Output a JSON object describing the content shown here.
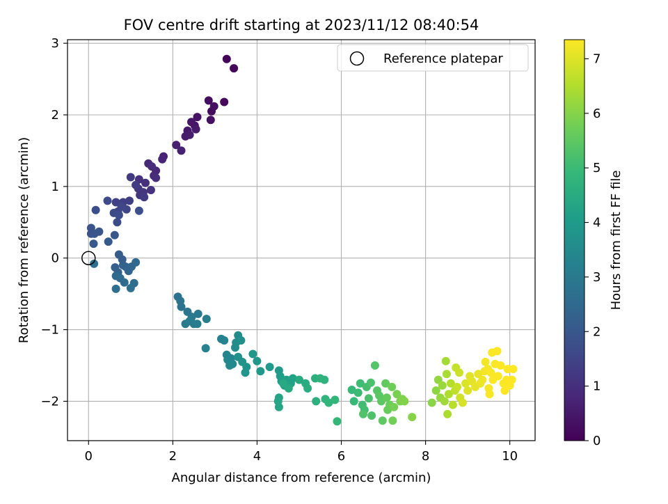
{
  "chart_data": {
    "type": "scatter",
    "title": "FOV centre drift starting at 2023/11/12 08:40:54",
    "xlabel": "Angular distance from reference (arcmin)",
    "ylabel": "Rotation from reference (arcmin)",
    "xlim": [
      -0.5,
      10.6
    ],
    "ylim": [
      -2.55,
      3.05
    ],
    "xticks": [
      "0",
      "2",
      "4",
      "6",
      "8",
      "10"
    ],
    "yticks": [
      "−2",
      "−1",
      "0",
      "1",
      "2",
      "3"
    ],
    "grid": true,
    "legend": {
      "placement": "top-right",
      "entries": [
        {
          "label": "Reference platepar",
          "marker": "open-circle"
        }
      ]
    },
    "reference_point": {
      "x": 0,
      "y": 0
    },
    "colorbar": {
      "label": "Hours from first FF file",
      "range": [
        0,
        7.35
      ],
      "ticks": [
        "0",
        "1",
        "2",
        "3",
        "4",
        "5",
        "6",
        "7"
      ],
      "colormap": "viridis"
    },
    "points": [
      [
        3.28,
        2.78,
        0.05
      ],
      [
        3.45,
        2.65,
        0.1
      ],
      [
        3.22,
        2.18,
        0.15
      ],
      [
        2.92,
        2.05,
        0.2
      ],
      [
        2.85,
        2.2,
        0.25
      ],
      [
        2.98,
        2.12,
        0.28
      ],
      [
        2.9,
        1.93,
        0.32
      ],
      [
        2.58,
        1.97,
        0.36
      ],
      [
        2.52,
        1.85,
        0.4
      ],
      [
        2.44,
        1.9,
        0.44
      ],
      [
        2.35,
        1.78,
        0.48
      ],
      [
        2.55,
        1.8,
        0.52
      ],
      [
        2.3,
        1.7,
        0.56
      ],
      [
        2.4,
        1.72,
        0.6
      ],
      [
        2.08,
        1.58,
        0.64
      ],
      [
        2.2,
        1.5,
        0.68
      ],
      [
        1.78,
        1.42,
        0.72
      ],
      [
        1.75,
        1.38,
        0.76
      ],
      [
        1.6,
        1.22,
        0.8
      ],
      [
        1.42,
        1.32,
        0.84
      ],
      [
        1.55,
        1.15,
        0.88
      ],
      [
        1.5,
        1.28,
        0.92
      ],
      [
        1.6,
        1.12,
        0.96
      ],
      [
        1.35,
        1.05,
        1.0
      ],
      [
        1.2,
        1.1,
        1.04
      ],
      [
        1.48,
        0.95,
        1.08
      ],
      [
        1.3,
        0.92,
        1.12
      ],
      [
        1.22,
        0.88,
        1.16
      ],
      [
        1.18,
        0.97,
        1.2
      ],
      [
        1.32,
        0.85,
        1.24
      ],
      [
        1.0,
        1.13,
        1.28
      ],
      [
        1.12,
        1.02,
        1.32
      ],
      [
        0.97,
        0.8,
        1.36
      ],
      [
        0.82,
        0.78,
        1.4
      ],
      [
        0.65,
        0.78,
        1.44
      ],
      [
        0.7,
        0.65,
        1.48
      ],
      [
        0.9,
        0.68,
        1.52
      ],
      [
        0.78,
        0.72,
        1.56
      ],
      [
        0.6,
        0.63,
        1.6
      ],
      [
        0.45,
        0.8,
        1.64
      ],
      [
        0.68,
        0.5,
        1.68
      ],
      [
        0.72,
        0.6,
        1.72
      ],
      [
        1.2,
        0.66,
        1.76
      ],
      [
        0.17,
        0.67,
        1.8
      ],
      [
        0.06,
        0.42,
        1.84
      ],
      [
        0.06,
        0.34,
        1.88
      ],
      [
        0.14,
        0.34,
        1.92
      ],
      [
        0.25,
        0.37,
        1.96
      ],
      [
        0.62,
        0.32,
        2.0
      ],
      [
        0.12,
        0.2,
        2.04
      ],
      [
        0.47,
        0.23,
        2.08
      ],
      [
        0.72,
        0.05,
        2.12
      ],
      [
        0.8,
        -0.02,
        2.16
      ],
      [
        0.82,
        -0.1,
        2.2
      ],
      [
        0.63,
        -0.13,
        2.24
      ],
      [
        0.7,
        -0.2,
        2.28
      ],
      [
        0.88,
        -0.12,
        2.32
      ],
      [
        0.95,
        -0.18,
        2.36
      ],
      [
        1.02,
        -0.12,
        2.4
      ],
      [
        1.12,
        -0.06,
        2.44
      ],
      [
        0.65,
        -0.25,
        2.48
      ],
      [
        0.75,
        -0.28,
        2.52
      ],
      [
        0.85,
        -0.34,
        2.56
      ],
      [
        1.08,
        -0.35,
        2.6
      ],
      [
        1.0,
        -0.42,
        2.64
      ],
      [
        0.65,
        -0.43,
        2.68
      ],
      [
        0.13,
        -0.08,
        2.72
      ],
      [
        2.12,
        -0.54,
        2.76
      ],
      [
        2.18,
        -0.6,
        2.8
      ],
      [
        2.2,
        -0.68,
        2.84
      ],
      [
        2.35,
        -0.75,
        2.88
      ],
      [
        2.45,
        -0.82,
        2.92
      ],
      [
        2.6,
        -0.78,
        2.96
      ],
      [
        2.3,
        -0.92,
        3.0
      ],
      [
        2.5,
        -0.92,
        3.04
      ],
      [
        2.4,
        -0.88,
        3.08
      ],
      [
        2.58,
        -0.92,
        3.12
      ],
      [
        2.8,
        -0.85,
        3.16
      ],
      [
        2.78,
        -1.26,
        3.2
      ],
      [
        3.15,
        -1.13,
        3.24
      ],
      [
        3.22,
        -1.15,
        3.28
      ],
      [
        3.28,
        -1.35,
        3.32
      ],
      [
        3.38,
        -1.4,
        3.36
      ],
      [
        3.3,
        -1.42,
        3.4
      ],
      [
        3.42,
        -1.48,
        3.44
      ],
      [
        3.35,
        -1.5,
        3.48
      ],
      [
        3.55,
        -1.08,
        3.52
      ],
      [
        3.5,
        -1.18,
        3.56
      ],
      [
        3.48,
        -1.25,
        3.6
      ],
      [
        3.62,
        -1.15,
        3.64
      ],
      [
        3.55,
        -1.38,
        3.68
      ],
      [
        3.65,
        -1.45,
        3.72
      ],
      [
        3.75,
        -1.52,
        3.76
      ],
      [
        3.72,
        -1.6,
        3.8
      ],
      [
        3.9,
        -1.34,
        3.84
      ],
      [
        4.0,
        -1.44,
        3.88
      ],
      [
        4.08,
        -1.58,
        3.92
      ],
      [
        4.3,
        -1.52,
        3.96
      ],
      [
        4.52,
        -1.57,
        4.0
      ],
      [
        4.55,
        -1.65,
        4.04
      ],
      [
        4.58,
        -1.72,
        4.08
      ],
      [
        4.65,
        -1.78,
        4.12
      ],
      [
        4.7,
        -1.7,
        4.16
      ],
      [
        4.8,
        -1.75,
        4.2
      ],
      [
        4.85,
        -1.68,
        4.24
      ],
      [
        4.52,
        -1.95,
        4.28
      ],
      [
        4.52,
        -2.08,
        4.32
      ],
      [
        4.5,
        -2.0,
        4.36
      ],
      [
        4.62,
        -1.75,
        4.4
      ],
      [
        4.75,
        -1.82,
        4.44
      ],
      [
        5.0,
        -1.7,
        4.48
      ],
      [
        5.15,
        -1.75,
        4.52
      ],
      [
        5.2,
        -1.82,
        4.56
      ],
      [
        5.38,
        -1.68,
        4.6
      ],
      [
        5.4,
        -2.0,
        4.64
      ],
      [
        5.5,
        -1.68,
        4.68
      ],
      [
        5.6,
        -1.7,
        4.72
      ],
      [
        5.62,
        -1.97,
        4.76
      ],
      [
        5.7,
        -2.02,
        4.8
      ],
      [
        5.85,
        -1.98,
        4.84
      ],
      [
        5.9,
        -2.28,
        4.88
      ],
      [
        6.25,
        -1.84,
        4.92
      ],
      [
        6.3,
        -2.0,
        4.96
      ],
      [
        6.4,
        -1.88,
        5.0
      ],
      [
        6.45,
        -1.75,
        5.04
      ],
      [
        6.5,
        -2.05,
        5.08
      ],
      [
        6.55,
        -2.12,
        5.12
      ],
      [
        6.6,
        -1.8,
        5.16
      ],
      [
        6.65,
        -1.96,
        5.2
      ],
      [
        6.7,
        -1.74,
        5.24
      ],
      [
        6.72,
        -2.2,
        5.28
      ],
      [
        6.52,
        -2.18,
        5.32
      ],
      [
        6.8,
        -1.5,
        5.36
      ],
      [
        6.85,
        -1.85,
        5.4
      ],
      [
        6.9,
        -1.92,
        5.44
      ],
      [
        6.95,
        -2.0,
        5.48
      ],
      [
        6.98,
        -2.27,
        5.52
      ],
      [
        7.05,
        -1.75,
        5.56
      ],
      [
        7.08,
        -1.95,
        5.6
      ],
      [
        7.1,
        -2.12,
        5.64
      ],
      [
        7.15,
        -2.05,
        5.68
      ],
      [
        7.2,
        -1.8,
        5.72
      ],
      [
        7.22,
        -2.27,
        5.76
      ],
      [
        7.25,
        -2.08,
        5.8
      ],
      [
        7.32,
        -1.9,
        5.84
      ],
      [
        7.4,
        -2.0,
        5.88
      ],
      [
        7.45,
        -1.97,
        5.92
      ],
      [
        7.5,
        -2.0,
        5.96
      ],
      [
        7.68,
        -2.22,
        6.0
      ],
      [
        8.15,
        -2.02,
        6.05
      ],
      [
        8.25,
        -1.85,
        6.1
      ],
      [
        8.3,
        -1.7,
        6.15
      ],
      [
        8.35,
        -1.95,
        6.2
      ],
      [
        8.4,
        -1.78,
        6.25
      ],
      [
        8.45,
        -2.0,
        6.3
      ],
      [
        8.48,
        -1.44,
        6.35
      ],
      [
        8.5,
        -1.62,
        6.4
      ],
      [
        8.52,
        -2.18,
        6.45
      ],
      [
        8.55,
        -1.9,
        6.5
      ],
      [
        8.6,
        -1.75,
        6.55
      ],
      [
        8.65,
        -2.05,
        6.6
      ],
      [
        8.7,
        -1.85,
        6.65
      ],
      [
        8.72,
        -1.53,
        6.7
      ],
      [
        8.75,
        -1.8,
        6.75
      ],
      [
        8.8,
        -1.6,
        6.8
      ],
      [
        8.82,
        -1.95,
        6.85
      ],
      [
        8.88,
        -2.02,
        6.9
      ],
      [
        8.95,
        -1.75,
        6.95
      ],
      [
        9.0,
        -1.85,
        7.0
      ],
      [
        9.05,
        -1.65,
        7.03
      ],
      [
        9.1,
        -1.72,
        7.06
      ],
      [
        9.18,
        -1.8,
        7.09
      ],
      [
        9.25,
        -1.62,
        7.12
      ],
      [
        9.3,
        -1.75,
        7.15
      ],
      [
        9.35,
        -1.7,
        7.18
      ],
      [
        9.4,
        -1.58,
        7.21
      ],
      [
        9.42,
        -1.45,
        7.24
      ],
      [
        9.48,
        -1.55,
        7.26
      ],
      [
        9.5,
        -1.82,
        7.28
      ],
      [
        9.55,
        -1.6,
        7.3
      ],
      [
        9.58,
        -1.32,
        7.31
      ],
      [
        9.6,
        -1.7,
        7.32
      ],
      [
        9.65,
        -1.48,
        7.33
      ],
      [
        9.7,
        -1.3,
        7.33
      ],
      [
        9.72,
        -1.65,
        7.34
      ],
      [
        9.78,
        -1.5,
        7.34
      ],
      [
        9.85,
        -1.75,
        7.35
      ],
      [
        9.92,
        -1.7,
        7.35
      ],
      [
        9.95,
        -1.55,
        7.35
      ],
      [
        10.0,
        -1.78,
        7.35
      ],
      [
        10.05,
        -1.7,
        7.35
      ],
      [
        10.08,
        -1.55,
        7.35
      ],
      [
        9.88,
        -1.85,
        7.35
      ],
      [
        9.52,
        -1.9,
        7.3
      ]
    ]
  }
}
